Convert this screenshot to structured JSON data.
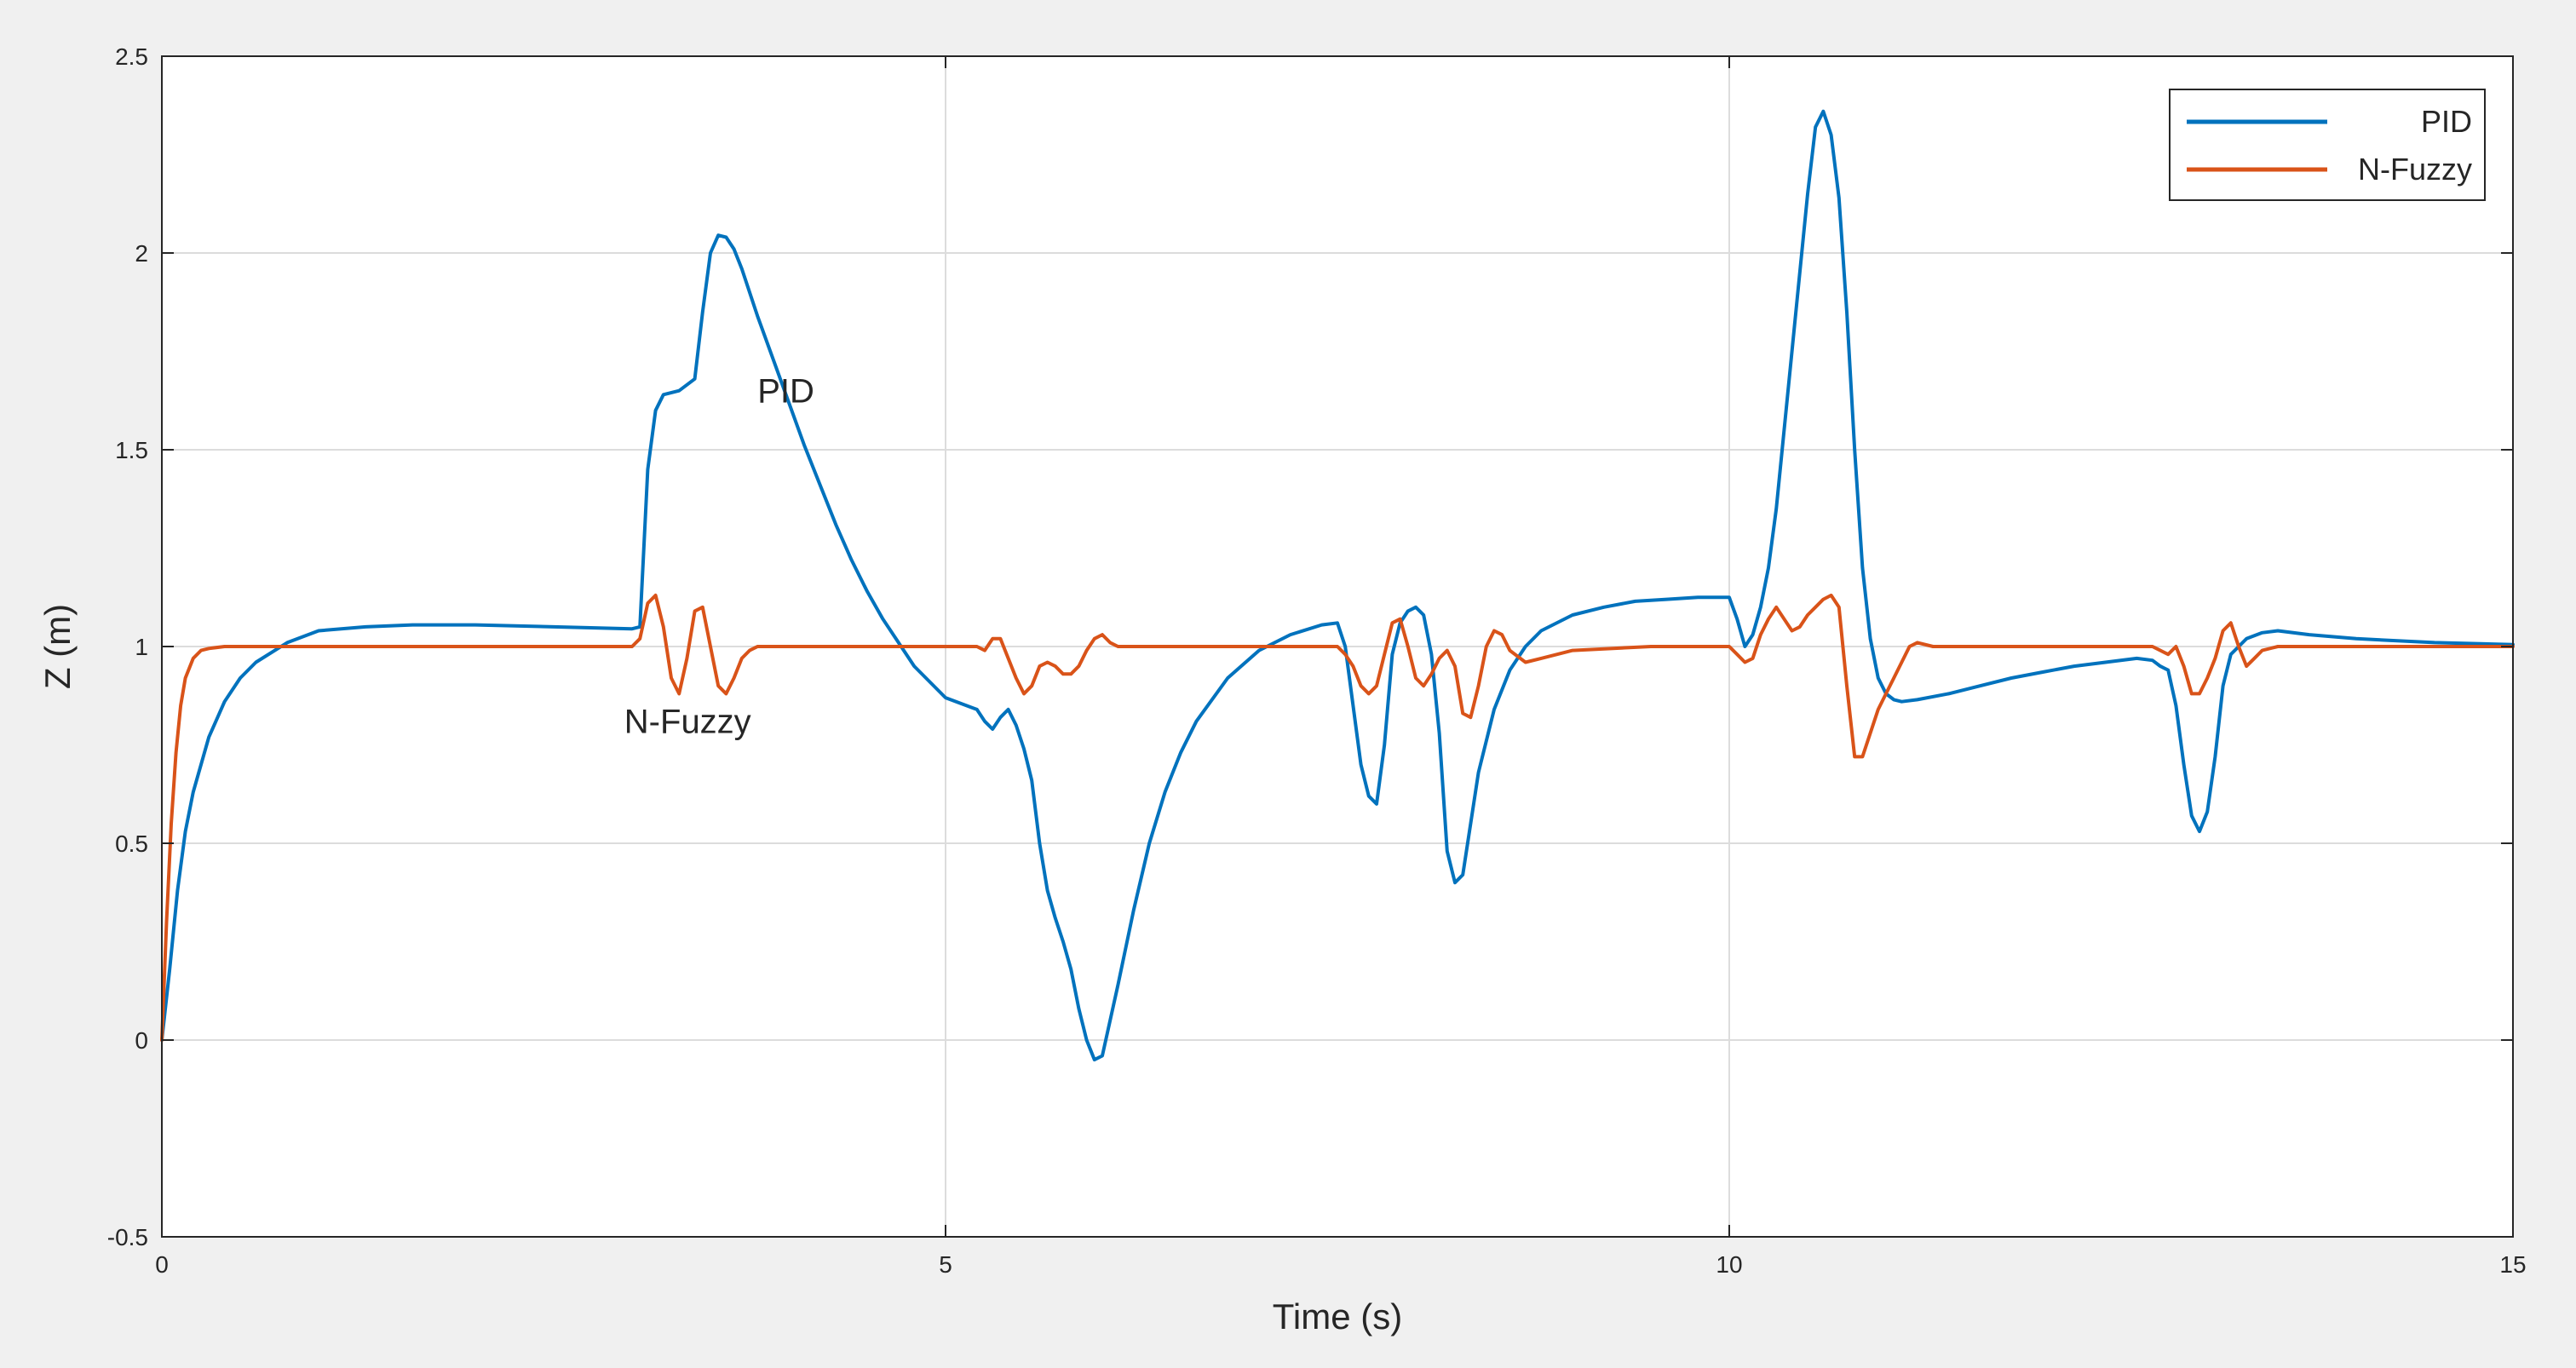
{
  "colors": {
    "figure_bg": "#f0f0f0",
    "axes_bg": "#ffffff",
    "grid": "#dcdcdc",
    "axis": "#262626",
    "pid": "#0072BD",
    "nfuzzy": "#D95319"
  },
  "chart_data": {
    "type": "line",
    "title": "",
    "xlabel": "Time (s)",
    "ylabel": "Z (m)",
    "xlim": [
      0,
      15
    ],
    "ylim": [
      -0.5,
      2.5
    ],
    "xticks": [
      0,
      5,
      10,
      15
    ],
    "xtick_labels": [
      "0",
      "5",
      "10",
      "15"
    ],
    "yticks": [
      -0.5,
      0,
      0.5,
      1,
      1.5,
      2,
      2.5
    ],
    "ytick_labels": [
      "-0.5",
      "0",
      "0.5",
      "1",
      "1.5",
      "2",
      "2.5"
    ],
    "grid": true,
    "legend_position": "top-right",
    "series": [
      {
        "name": "PID",
        "color": "#0072BD",
        "x": [
          0,
          0.05,
          0.1,
          0.15,
          0.2,
          0.3,
          0.4,
          0.5,
          0.6,
          0.8,
          1.0,
          1.3,
          1.6,
          2.0,
          2.5,
          3.0,
          3.05,
          3.1,
          3.15,
          3.2,
          3.3,
          3.4,
          3.45,
          3.5,
          3.55,
          3.6,
          3.65,
          3.7,
          3.8,
          3.9,
          4.0,
          4.1,
          4.2,
          4.3,
          4.4,
          4.5,
          4.6,
          4.7,
          4.8,
          5.0,
          5.2,
          5.25,
          5.3,
          5.35,
          5.4,
          5.45,
          5.5,
          5.55,
          5.6,
          5.65,
          5.7,
          5.75,
          5.8,
          5.85,
          5.9,
          5.95,
          6.0,
          6.1,
          6.2,
          6.3,
          6.4,
          6.5,
          6.6,
          6.8,
          7.0,
          7.2,
          7.4,
          7.5,
          7.55,
          7.6,
          7.65,
          7.7,
          7.75,
          7.8,
          7.85,
          7.9,
          7.95,
          8.0,
          8.05,
          8.1,
          8.15,
          8.2,
          8.25,
          8.3,
          8.35,
          8.4,
          8.5,
          8.6,
          8.7,
          8.8,
          9.0,
          9.2,
          9.4,
          9.6,
          9.8,
          10.0,
          10.05,
          10.1,
          10.15,
          10.2,
          10.25,
          10.3,
          10.35,
          10.4,
          10.45,
          10.5,
          10.55,
          10.6,
          10.65,
          10.7,
          10.75,
          10.8,
          10.85,
          10.9,
          10.95,
          11.0,
          11.05,
          11.1,
          11.2,
          11.4,
          11.6,
          11.8,
          12.0,
          12.2,
          12.4,
          12.6,
          12.7,
          12.75,
          12.8,
          12.85,
          12.9,
          12.95,
          13.0,
          13.05,
          13.1,
          13.15,
          13.2,
          13.3,
          13.4,
          13.5,
          13.7,
          14.0,
          14.5,
          15.0
        ],
        "y": [
          0.0,
          0.18,
          0.38,
          0.53,
          0.63,
          0.77,
          0.86,
          0.92,
          0.96,
          1.01,
          1.04,
          1.05,
          1.055,
          1.055,
          1.05,
          1.045,
          1.05,
          1.45,
          1.6,
          1.64,
          1.65,
          1.68,
          1.85,
          2.0,
          2.045,
          2.04,
          2.01,
          1.96,
          1.84,
          1.73,
          1.62,
          1.51,
          1.41,
          1.31,
          1.22,
          1.14,
          1.07,
          1.01,
          0.95,
          0.87,
          0.84,
          0.81,
          0.79,
          0.82,
          0.84,
          0.8,
          0.74,
          0.66,
          0.5,
          0.38,
          0.31,
          0.25,
          0.18,
          0.08,
          0.0,
          -0.05,
          -0.04,
          0.14,
          0.33,
          0.5,
          0.63,
          0.73,
          0.81,
          0.92,
          0.99,
          1.03,
          1.055,
          1.06,
          1.0,
          0.85,
          0.7,
          0.62,
          0.6,
          0.75,
          0.98,
          1.06,
          1.09,
          1.1,
          1.08,
          0.98,
          0.78,
          0.48,
          0.4,
          0.42,
          0.55,
          0.68,
          0.84,
          0.94,
          1.0,
          1.04,
          1.08,
          1.1,
          1.115,
          1.12,
          1.125,
          1.125,
          1.07,
          1.0,
          1.03,
          1.1,
          1.2,
          1.35,
          1.55,
          1.75,
          1.95,
          2.15,
          2.32,
          2.36,
          2.3,
          2.14,
          1.85,
          1.5,
          1.2,
          1.02,
          0.92,
          0.88,
          0.865,
          0.86,
          0.865,
          0.88,
          0.9,
          0.92,
          0.935,
          0.95,
          0.96,
          0.97,
          0.965,
          0.95,
          0.94,
          0.85,
          0.7,
          0.57,
          0.53,
          0.58,
          0.72,
          0.9,
          0.98,
          1.02,
          1.035,
          1.04,
          1.03,
          1.02,
          1.01,
          1.005
        ]
      },
      {
        "name": "N-Fuzzy",
        "color": "#D95319",
        "x": [
          0,
          0.03,
          0.06,
          0.09,
          0.12,
          0.15,
          0.2,
          0.25,
          0.3,
          0.4,
          0.5,
          1.0,
          2.0,
          3.0,
          3.05,
          3.1,
          3.15,
          3.2,
          3.25,
          3.3,
          3.35,
          3.4,
          3.45,
          3.5,
          3.55,
          3.6,
          3.65,
          3.7,
          3.75,
          3.8,
          3.9,
          4.0,
          4.5,
          5.0,
          5.2,
          5.25,
          5.3,
          5.35,
          5.4,
          5.45,
          5.5,
          5.55,
          5.6,
          5.65,
          5.7,
          5.75,
          5.8,
          5.85,
          5.9,
          5.95,
          6.0,
          6.05,
          6.1,
          6.15,
          6.2,
          6.4,
          7.0,
          7.5,
          7.55,
          7.6,
          7.65,
          7.7,
          7.75,
          7.8,
          7.85,
          7.9,
          7.95,
          8.0,
          8.05,
          8.1,
          8.15,
          8.2,
          8.25,
          8.3,
          8.35,
          8.4,
          8.45,
          8.5,
          8.55,
          8.6,
          8.7,
          8.8,
          9.0,
          9.5,
          10.0,
          10.05,
          10.1,
          10.15,
          10.2,
          10.25,
          10.3,
          10.35,
          10.4,
          10.45,
          10.5,
          10.55,
          10.6,
          10.65,
          10.7,
          10.75,
          10.8,
          10.85,
          10.9,
          10.95,
          11.0,
          11.05,
          11.1,
          11.15,
          11.2,
          11.3,
          11.5,
          12.0,
          12.5,
          12.7,
          12.75,
          12.8,
          12.85,
          12.9,
          12.95,
          13.0,
          13.05,
          13.1,
          13.15,
          13.2,
          13.25,
          13.3,
          13.35,
          13.4,
          13.5,
          13.7,
          14.0,
          15.0
        ],
        "y": [
          0.0,
          0.3,
          0.55,
          0.73,
          0.85,
          0.92,
          0.97,
          0.99,
          0.995,
          1.0,
          1.0,
          1.0,
          1.0,
          1.0,
          1.02,
          1.11,
          1.13,
          1.05,
          0.92,
          0.88,
          0.97,
          1.09,
          1.1,
          1.0,
          0.9,
          0.88,
          0.92,
          0.97,
          0.99,
          1.0,
          1.0,
          1.0,
          1.0,
          1.0,
          1.0,
          0.99,
          1.02,
          1.02,
          0.97,
          0.92,
          0.88,
          0.9,
          0.95,
          0.96,
          0.95,
          0.93,
          0.93,
          0.95,
          0.99,
          1.02,
          1.03,
          1.01,
          1.0,
          1.0,
          1.0,
          1.0,
          1.0,
          1.0,
          0.98,
          0.95,
          0.9,
          0.88,
          0.9,
          0.98,
          1.06,
          1.07,
          1.0,
          0.92,
          0.9,
          0.93,
          0.97,
          0.99,
          0.95,
          0.83,
          0.82,
          0.9,
          1.0,
          1.04,
          1.03,
          0.99,
          0.96,
          0.97,
          0.99,
          1.0,
          1.0,
          0.98,
          0.96,
          0.97,
          1.03,
          1.07,
          1.1,
          1.07,
          1.04,
          1.05,
          1.08,
          1.1,
          1.12,
          1.13,
          1.1,
          0.9,
          0.72,
          0.72,
          0.78,
          0.84,
          0.88,
          0.92,
          0.96,
          1.0,
          1.01,
          1.0,
          1.0,
          1.0,
          1.0,
          1.0,
          0.99,
          0.98,
          1.0,
          0.95,
          0.88,
          0.88,
          0.92,
          0.97,
          1.04,
          1.06,
          1.0,
          0.95,
          0.97,
          0.99,
          1.0,
          1.0,
          1.0,
          1.0
        ]
      }
    ],
    "annotations": [
      {
        "text": "PID",
        "x": 3.8,
        "y": 1.62
      },
      {
        "text": "N-Fuzzy",
        "x": 2.95,
        "y": 0.78
      }
    ]
  }
}
